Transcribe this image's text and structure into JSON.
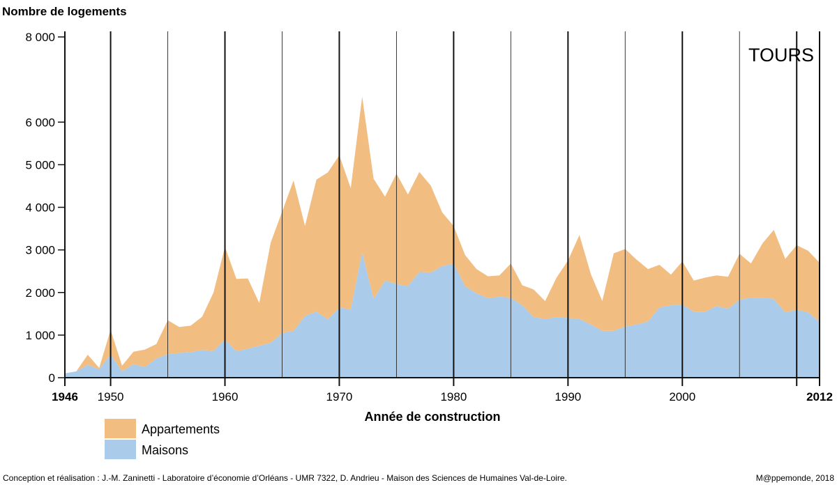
{
  "chart_data": {
    "type": "area",
    "stacked": true,
    "ylabel": "Nombre de logements",
    "xlabel": "Année de construction",
    "place_label": "TOURS",
    "ylim": [
      0,
      8000
    ],
    "xlim": [
      1946,
      2012
    ],
    "y_ticks": [
      {
        "value": 0,
        "label": "0"
      },
      {
        "value": 1000,
        "label": "1 000"
      },
      {
        "value": 2000,
        "label": "2 000"
      },
      {
        "value": 3000,
        "label": "3 000"
      },
      {
        "value": 4000,
        "label": "4 000"
      },
      {
        "value": 5000,
        "label": "5 000"
      },
      {
        "value": 6000,
        "label": "6 000"
      },
      {
        "value": 8000,
        "label": "8 000"
      }
    ],
    "x_ticks": [
      {
        "value": 1946,
        "label": "1946",
        "bold": true
      },
      {
        "value": 1950,
        "label": "1950",
        "bold": false
      },
      {
        "value": 1960,
        "label": "1960",
        "bold": false
      },
      {
        "value": 1970,
        "label": "1970",
        "bold": false
      },
      {
        "value": 1980,
        "label": "1980",
        "bold": false
      },
      {
        "value": 1990,
        "label": "1990",
        "bold": false
      },
      {
        "value": 2000,
        "label": "2000",
        "bold": false
      },
      {
        "value": 2012,
        "label": "2012",
        "bold": true
      }
    ],
    "major_gridlines": [
      1946,
      1950,
      1960,
      1970,
      1980,
      1990,
      2000,
      2010,
      2012
    ],
    "minor_gridlines": [
      1955,
      1965,
      1975,
      1985,
      1995,
      2005
    ],
    "x": [
      1946,
      1947,
      1948,
      1949,
      1950,
      1951,
      1952,
      1953,
      1954,
      1955,
      1956,
      1957,
      1958,
      1959,
      1960,
      1961,
      1962,
      1963,
      1964,
      1965,
      1966,
      1967,
      1968,
      1969,
      1970,
      1971,
      1972,
      1973,
      1974,
      1975,
      1976,
      1977,
      1978,
      1979,
      1980,
      1981,
      1982,
      1983,
      1984,
      1985,
      1986,
      1987,
      1988,
      1989,
      1990,
      1991,
      1992,
      1993,
      1994,
      1995,
      1996,
      1997,
      1998,
      1999,
      2000,
      2001,
      2002,
      2003,
      2004,
      2005,
      2006,
      2007,
      2008,
      2009,
      2010,
      2011,
      2012
    ],
    "series": [
      {
        "name": "Maisons",
        "color": "#abcbeb",
        "values": [
          100,
          150,
          300,
          200,
          550,
          150,
          320,
          250,
          450,
          550,
          580,
          600,
          650,
          630,
          900,
          620,
          680,
          750,
          820,
          1050,
          1100,
          1450,
          1550,
          1370,
          1650,
          1600,
          2950,
          1850,
          2280,
          2200,
          2150,
          2480,
          2470,
          2620,
          2680,
          2150,
          1980,
          1870,
          1900,
          1880,
          1700,
          1420,
          1380,
          1420,
          1400,
          1380,
          1250,
          1100,
          1100,
          1200,
          1250,
          1320,
          1650,
          1700,
          1720,
          1550,
          1550,
          1680,
          1620,
          1830,
          1880,
          1880,
          1850,
          1530,
          1600,
          1530,
          1320
        ]
      },
      {
        "name": "Appartements",
        "color": "#f1bd80",
        "values": [
          0,
          0,
          240,
          30,
          570,
          130,
          290,
          410,
          340,
          800,
          610,
          620,
          780,
          1370,
          2170,
          1700,
          1650,
          1000,
          2350,
          2850,
          3530,
          2110,
          3100,
          3450,
          3570,
          2850,
          3650,
          2820,
          1970,
          2590,
          2150,
          2350,
          2040,
          1260,
          880,
          730,
          570,
          510,
          500,
          800,
          470,
          650,
          420,
          930,
          1350,
          1970,
          1180,
          700,
          1820,
          1820,
          1520,
          1230,
          1000,
          720,
          1010,
          730,
          800,
          720,
          750,
          1080,
          800,
          1270,
          1620,
          1260,
          1510,
          1450,
          1380
        ]
      }
    ]
  },
  "legend": [
    {
      "label": "Appartements",
      "color": "#f1bd80"
    },
    {
      "label": "Maisons",
      "color": "#abcbeb"
    }
  ],
  "footer": {
    "credit": "Conception et réalisation : J.-M. Zaninetti - Laboratoire d’économie d’Orléans - UMR 7322,  D. Andrieu - Maison des Sciences de Humaines Val-de-Loire.",
    "source": "M@ppemonde, 2018"
  }
}
